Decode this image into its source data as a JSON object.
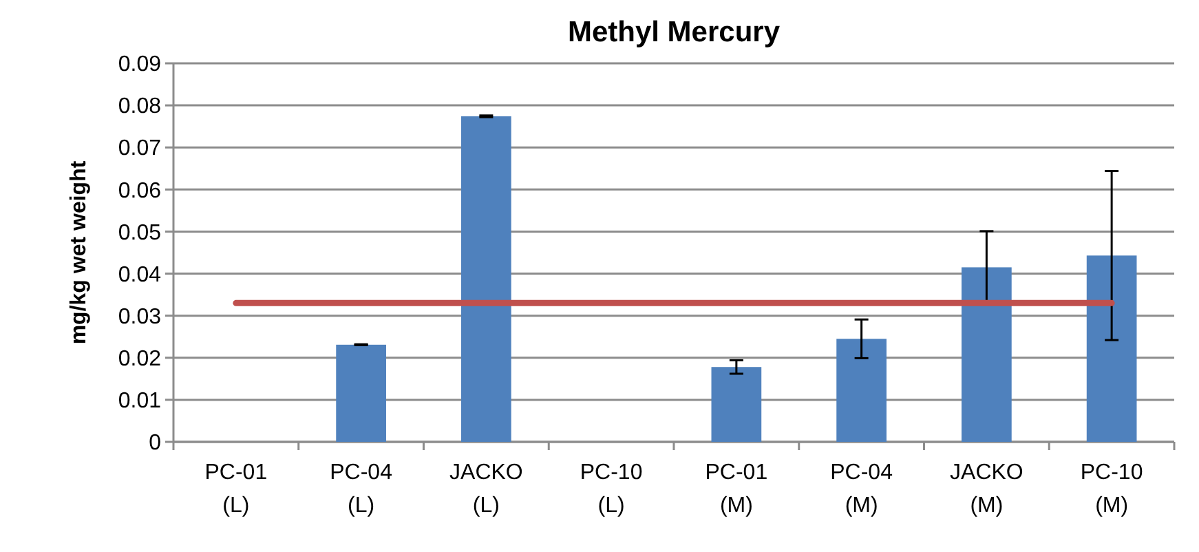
{
  "chart_data": {
    "type": "bar",
    "title": "Methyl Mercury",
    "ylabel": "mg/kg wet weight",
    "categories": [
      "PC-01 (L)",
      "PC-04 (L)",
      "JACKO (L)",
      "PC-10 (L)",
      "PC-01 (M)",
      "PC-04 (M)",
      "JACKO (M)",
      "PC-10 (M)"
    ],
    "series": [
      {
        "color": "#4f81bd",
        "values": [
          null,
          0.0231,
          0.0774,
          null,
          0.0178,
          0.0245,
          0.0415,
          0.0443
        ],
        "errors": [
          null,
          0.0001,
          0.0002,
          null,
          0.0016,
          0.0046,
          0.0086,
          0.0201
        ]
      },
      {
        "type": "line",
        "color": "#c0504d",
        "values": [
          0.033,
          0.033,
          0.033,
          0.033,
          0.033,
          0.033,
          0.033,
          0.033
        ]
      }
    ],
    "ylim": [
      0,
      0.09
    ],
    "yticks": [
      0,
      0.01,
      0.02,
      0.03,
      0.04,
      0.05,
      0.06,
      0.07,
      0.08,
      0.09
    ],
    "grid": "y"
  }
}
